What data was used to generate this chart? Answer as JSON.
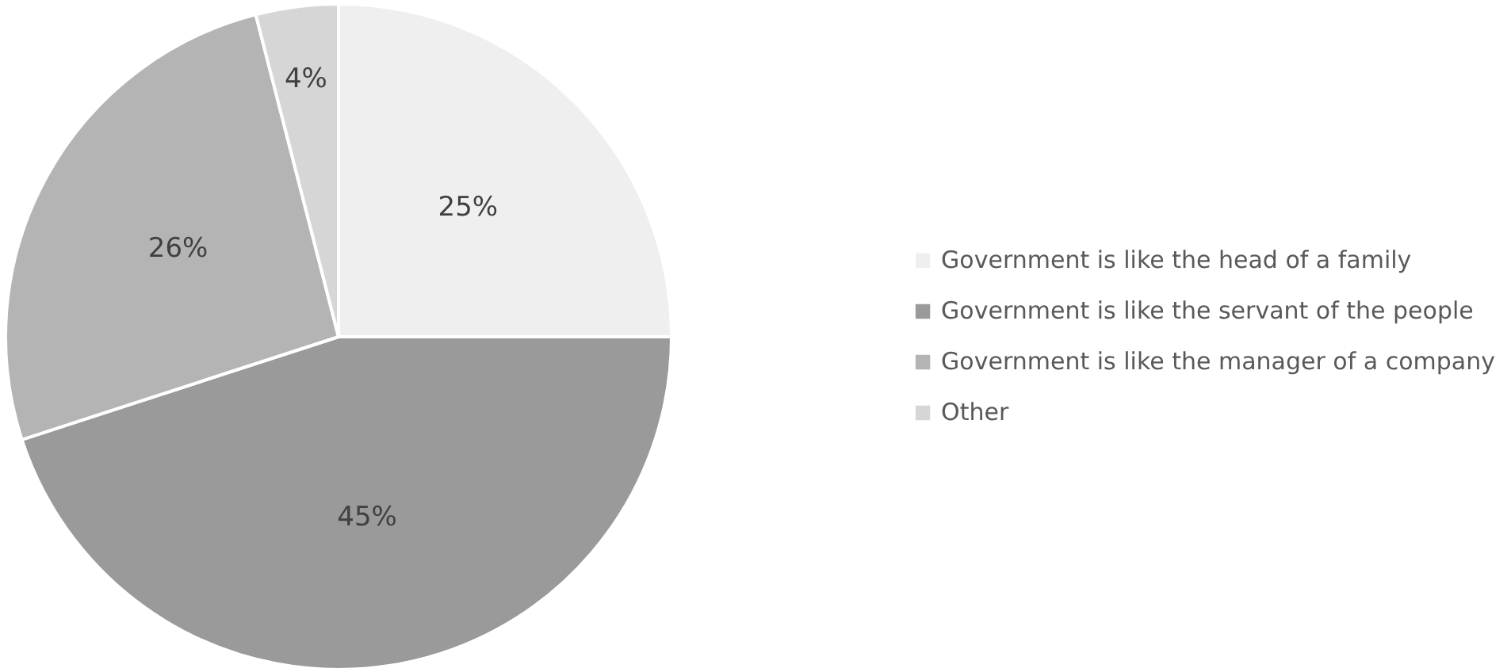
{
  "chart_data": {
    "type": "pie",
    "categories": [
      "Government is like the head of a family",
      "Government is like the servant of the people",
      "Government is like the manager of a company",
      "Other"
    ],
    "values": [
      25,
      45,
      26,
      4
    ],
    "colors": [
      "#efefef",
      "#9a9a9a",
      "#b4b4b4",
      "#d6d6d6"
    ],
    "value_labels": [
      "25%",
      "45%",
      "26%",
      "4%"
    ],
    "legend": "right"
  }
}
